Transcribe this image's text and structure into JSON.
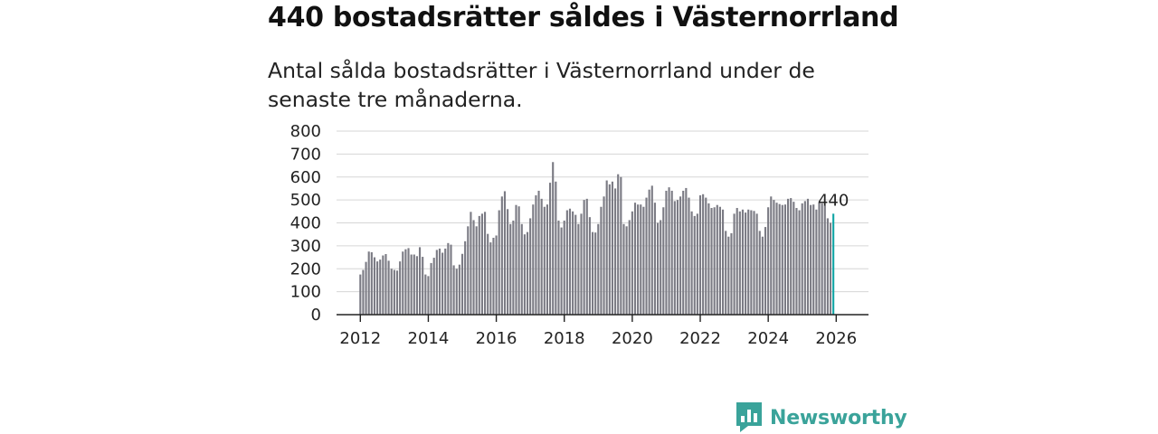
{
  "title": "440 bostadsrätter såldes i Västernorrland",
  "subtitle": "Antal sålda bostadsrätter i Västernorrland under de senaste tre månaderna.",
  "brand": {
    "name": "Newsworthy",
    "color": "#3aa39a",
    "icon": "newsworthy-chart-icon"
  },
  "colors": {
    "bar": "#7b7b84",
    "highlight": "#13a6a6",
    "grid": "#d6d6d6",
    "axis": "#222222"
  },
  "chart_data": {
    "type": "bar",
    "title": "440 bostadsrätter såldes i Västernorrland",
    "xlabel": "",
    "ylabel": "",
    "ylim": [
      0,
      800
    ],
    "yticks": [
      0,
      100,
      200,
      300,
      400,
      500,
      600,
      700,
      800
    ],
    "xlim": [
      2011.3,
      2026.95
    ],
    "xticks": [
      2012,
      2014,
      2016,
      2018,
      2020,
      2022,
      2024,
      2026
    ],
    "start": 2012.0,
    "step": 0.08333,
    "grid": true,
    "series": [
      {
        "name": "Sålda bostadsrätter",
        "values": [
          175,
          195,
          230,
          275,
          272,
          250,
          232,
          240,
          258,
          264,
          235,
          200,
          195,
          192,
          232,
          275,
          285,
          290,
          262,
          262,
          255,
          294,
          252,
          175,
          168,
          225,
          248,
          282,
          288,
          270,
          288,
          312,
          305,
          215,
          200,
          218,
          265,
          320,
          385,
          448,
          412,
          385,
          430,
          440,
          448,
          352,
          315,
          335,
          345,
          455,
          515,
          538,
          460,
          395,
          410,
          478,
          472,
          395,
          350,
          360,
          420,
          480,
          520,
          540,
          505,
          470,
          480,
          575,
          665,
          580,
          410,
          380,
          410,
          455,
          462,
          450,
          435,
          395,
          440,
          500,
          505,
          425,
          360,
          358,
          395,
          470,
          515,
          585,
          568,
          580,
          550,
          612,
          600,
          395,
          385,
          412,
          450,
          488,
          480,
          480,
          470,
          510,
          545,
          562,
          488,
          400,
          412,
          468,
          540,
          555,
          540,
          495,
          500,
          515,
          540,
          552,
          510,
          450,
          430,
          440,
          520,
          525,
          510,
          485,
          465,
          468,
          478,
          470,
          458,
          365,
          340,
          355,
          440,
          465,
          450,
          458,
          445,
          458,
          455,
          452,
          440,
          365,
          340,
          382,
          468,
          515,
          500,
          488,
          482,
          478,
          480,
          505,
          508,
          492,
          465,
          455,
          485,
          495,
          505,
          478,
          480,
          458,
          490,
          485,
          475,
          420,
          400
        ],
        "highlight": {
          "value": 440,
          "label": "440"
        }
      }
    ]
  }
}
